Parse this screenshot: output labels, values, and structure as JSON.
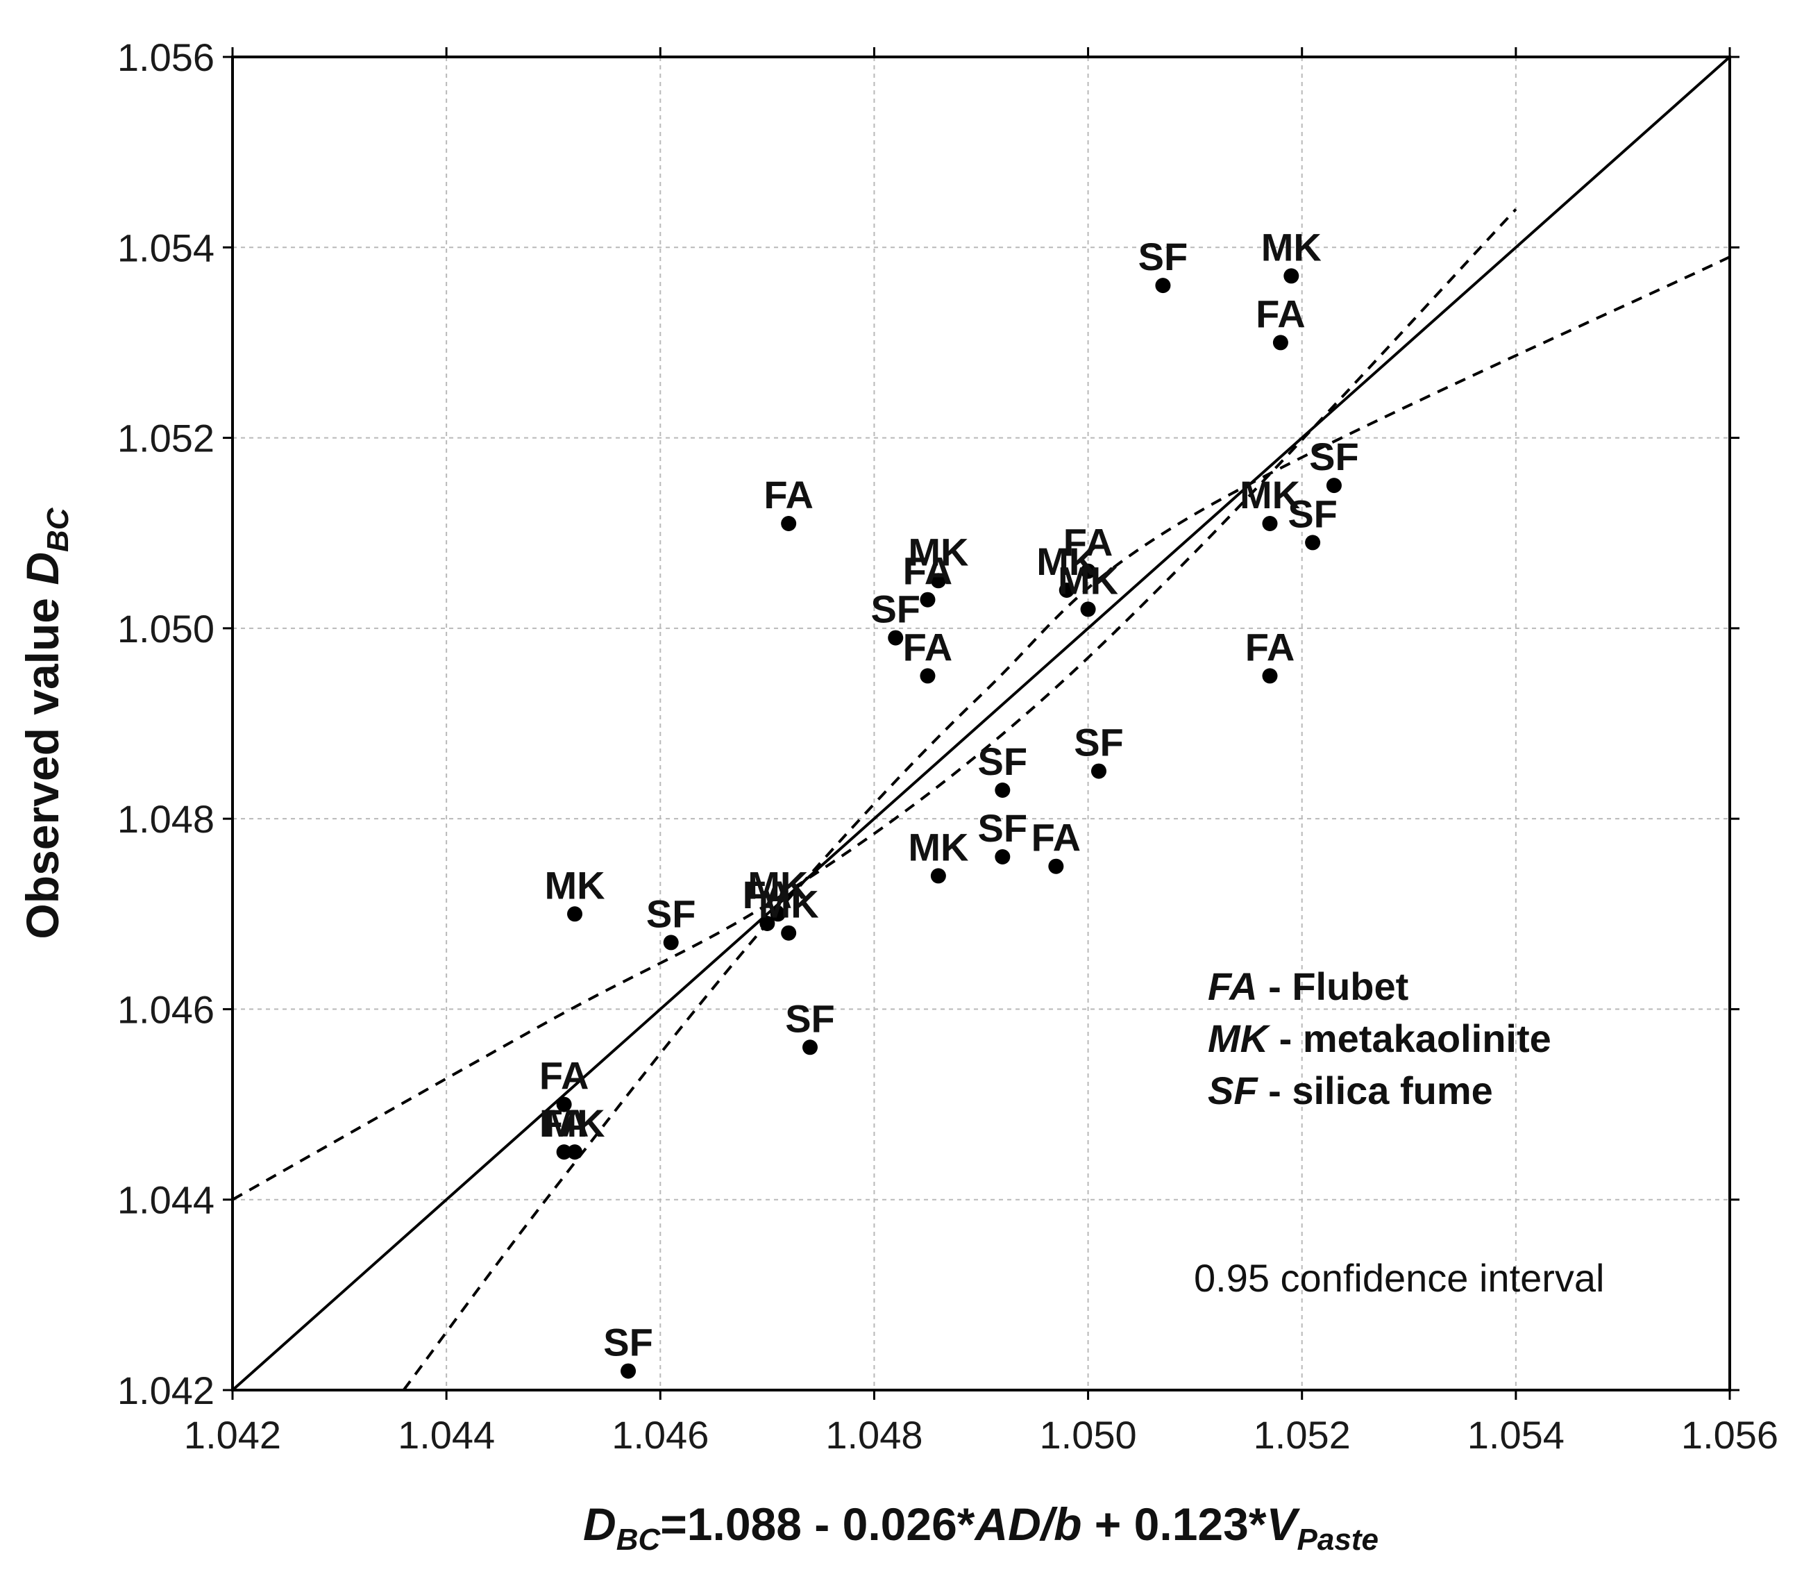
{
  "chart_data": {
    "type": "scatter",
    "title": "",
    "xlabel": {
      "prefix": "D",
      "prefix_sub": "BC",
      "middle": "=1.088 - 0.026*",
      "term": "AD/b",
      "plus": " + 0.123*",
      "var": "V",
      "var_sub": "Paste"
    },
    "ylabel": {
      "text": "Observed value ",
      "var": "D",
      "var_sub": "BC"
    },
    "xlim": [
      1.042,
      1.056
    ],
    "ylim": [
      1.042,
      1.056
    ],
    "xticks": [
      "1.042",
      "1.044",
      "1.046",
      "1.048",
      "1.050",
      "1.052",
      "1.054",
      "1.056"
    ],
    "yticks": [
      "1.042",
      "1.044",
      "1.046",
      "1.048",
      "1.050",
      "1.052",
      "1.054",
      "1.056"
    ],
    "grid": true,
    "points": [
      {
        "label": "SF",
        "x": 1.0507,
        "y": 1.0536
      },
      {
        "label": "MK",
        "x": 1.0519,
        "y": 1.0537
      },
      {
        "label": "FA",
        "x": 1.0518,
        "y": 1.053
      },
      {
        "label": "SF",
        "x": 1.0523,
        "y": 1.0515
      },
      {
        "label": "MK",
        "x": 1.0517,
        "y": 1.0511
      },
      {
        "label": "SF",
        "x": 1.0521,
        "y": 1.0509
      },
      {
        "label": "FA",
        "x": 1.0517,
        "y": 1.0495
      },
      {
        "label": "FA",
        "x": 1.0472,
        "y": 1.0511
      },
      {
        "label": "MK",
        "x": 1.0486,
        "y": 1.0505
      },
      {
        "label": "FA",
        "x": 1.0485,
        "y": 1.0503
      },
      {
        "label": "SF",
        "x": 1.0482,
        "y": 1.0499
      },
      {
        "label": "FA",
        "x": 1.0485,
        "y": 1.0495
      },
      {
        "label": "FA",
        "x": 1.05,
        "y": 1.0506
      },
      {
        "label": "MK",
        "x": 1.0498,
        "y": 1.0504
      },
      {
        "label": "MK",
        "x": 1.05,
        "y": 1.0502
      },
      {
        "label": "SF",
        "x": 1.0501,
        "y": 1.0485
      },
      {
        "label": "SF",
        "x": 1.0492,
        "y": 1.0483
      },
      {
        "label": "SF",
        "x": 1.0492,
        "y": 1.0476
      },
      {
        "label": "FA",
        "x": 1.0497,
        "y": 1.0475
      },
      {
        "label": "MK",
        "x": 1.0486,
        "y": 1.0474
      },
      {
        "label": "MK",
        "x": 1.0452,
        "y": 1.047
      },
      {
        "label": "SF",
        "x": 1.0461,
        "y": 1.0467
      },
      {
        "label": "FA",
        "x": 1.047,
        "y": 1.0469
      },
      {
        "label": "MK",
        "x": 1.0471,
        "y": 1.047
      },
      {
        "label": "MK",
        "x": 1.0472,
        "y": 1.0468
      },
      {
        "label": "SF",
        "x": 1.0474,
        "y": 1.0456
      },
      {
        "label": "FA",
        "x": 1.0451,
        "y": 1.045
      },
      {
        "label": "FA",
        "x": 1.0451,
        "y": 1.0445
      },
      {
        "label": "MK",
        "x": 1.0452,
        "y": 1.0445
      },
      {
        "label": "SF",
        "x": 1.0457,
        "y": 1.0422
      }
    ],
    "fit_line": {
      "style": "solid",
      "points": [
        [
          1.042,
          1.042
        ],
        [
          1.056,
          1.056
        ]
      ]
    },
    "confidence_upper": {
      "style": "dashed",
      "points": [
        [
          1.042,
          1.044
        ],
        [
          1.045,
          1.0459
        ],
        [
          1.047,
          1.0471
        ],
        [
          1.049,
          1.0487
        ],
        [
          1.051,
          1.0508
        ],
        [
          1.054,
          1.0544
        ]
      ]
    },
    "confidence_lower": {
      "style": "dashed",
      "points": [
        [
          1.0436,
          1.042
        ],
        [
          1.045,
          1.0441
        ],
        [
          1.047,
          1.0469
        ],
        [
          1.049,
          1.0493
        ],
        [
          1.051,
          1.0512
        ],
        [
          1.056,
          1.0539
        ]
      ]
    },
    "legend": [
      {
        "abbr": "FA",
        "desc": " - Flubet"
      },
      {
        "abbr": "MK",
        "desc": " - metakaolinite"
      },
      {
        "abbr": "SF",
        "desc": " - silica fume"
      }
    ],
    "annotation": "0.95 confidence interval"
  }
}
